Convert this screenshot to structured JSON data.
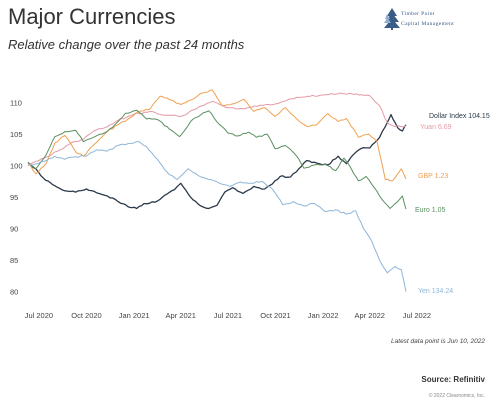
{
  "logo": {
    "line1": "Timber Point",
    "line2": "Capital Management",
    "colors": [
      "#3a5c86",
      "#5b87b5",
      "#8fb0d3"
    ]
  },
  "footer": {
    "note": "Latest data point is Jun 10, 2022",
    "source": "Source: Refinitiv",
    "copyright": "© 2022 Clearnomics, Inc."
  },
  "chart_data": {
    "type": "line",
    "title": "Major Currencies",
    "subtitle": "Relative change over the past 24 months",
    "xlabel": "",
    "ylabel": "",
    "x_ticks": [
      "Jul 2020",
      "Oct 2020",
      "Jan 2021",
      "Apr 2021",
      "Jul 2021",
      "Oct 2021",
      "Jan 2022",
      "Apr 2022",
      "Jul 2022"
    ],
    "x_range": [
      "2020-06-10",
      "2022-06-10"
    ],
    "y_ticks": [
      80,
      85,
      90,
      95,
      100,
      105,
      110
    ],
    "ylim": [
      79,
      112
    ],
    "grid": false,
    "legend": "end-of-line labels",
    "series": [
      {
        "name": "Dollar Index",
        "label": "Dollar Index 104.15",
        "color": "#2b3a4a",
        "points": [
          [
            "2020-06-10",
            100.5
          ],
          [
            "2020-06-25",
            99.5
          ],
          [
            "2020-07-10",
            98.0
          ],
          [
            "2020-08-01",
            96.8
          ],
          [
            "2020-08-20",
            96.0
          ],
          [
            "2020-09-10",
            95.8
          ],
          [
            "2020-10-01",
            96.3
          ],
          [
            "2020-10-20",
            95.7
          ],
          [
            "2020-11-10",
            95.2
          ],
          [
            "2020-12-01",
            94.3
          ],
          [
            "2020-12-20",
            93.5
          ],
          [
            "2021-01-06",
            93.2
          ],
          [
            "2021-01-20",
            94.0
          ],
          [
            "2021-02-10",
            94.2
          ],
          [
            "2021-03-01",
            95.3
          ],
          [
            "2021-03-20",
            96.2
          ],
          [
            "2021-04-01",
            97.2
          ],
          [
            "2021-04-20",
            95.0
          ],
          [
            "2021-05-10",
            93.6
          ],
          [
            "2021-05-25",
            93.2
          ],
          [
            "2021-06-10",
            93.7
          ],
          [
            "2021-06-25",
            95.8
          ],
          [
            "2021-07-10",
            96.5
          ],
          [
            "2021-07-30",
            95.6
          ],
          [
            "2021-08-20",
            96.7
          ],
          [
            "2021-09-10",
            96.3
          ],
          [
            "2021-09-25",
            97.1
          ],
          [
            "2021-10-10",
            98.3
          ],
          [
            "2021-10-30",
            98.2
          ],
          [
            "2021-11-15",
            99.5
          ],
          [
            "2021-11-30",
            100.8
          ],
          [
            "2021-12-20",
            100.4
          ],
          [
            "2022-01-10",
            100.1
          ],
          [
            "2022-01-30",
            101.5
          ],
          [
            "2022-02-15",
            100.3
          ],
          [
            "2022-03-01",
            101.8
          ],
          [
            "2022-03-15",
            102.7
          ],
          [
            "2022-04-01",
            102.8
          ],
          [
            "2022-04-20",
            104.5
          ],
          [
            "2022-05-01",
            106.2
          ],
          [
            "2022-05-12",
            108.1
          ],
          [
            "2022-05-25",
            106.0
          ],
          [
            "2022-06-03",
            105.5
          ],
          [
            "2022-06-10",
            106.5
          ]
        ]
      },
      {
        "name": "Yuan",
        "label": "Yuan 6.69",
        "color": "#e49aa6",
        "points": [
          [
            "2020-06-10",
            100.2
          ],
          [
            "2020-07-01",
            100.8
          ],
          [
            "2020-07-20",
            101.5
          ],
          [
            "2020-08-10",
            102.5
          ],
          [
            "2020-09-01",
            103.6
          ],
          [
            "2020-09-25",
            104.2
          ],
          [
            "2020-10-15",
            105.5
          ],
          [
            "2020-11-05",
            106.0
          ],
          [
            "2020-12-01",
            107.2
          ],
          [
            "2021-01-01",
            108.2
          ],
          [
            "2021-02-01",
            108.6
          ],
          [
            "2021-03-01",
            108.0
          ],
          [
            "2021-04-01",
            107.8
          ],
          [
            "2021-05-01",
            109.0
          ],
          [
            "2021-06-01",
            110.2
          ],
          [
            "2021-07-01",
            109.2
          ],
          [
            "2021-08-01",
            109.0
          ],
          [
            "2021-09-01",
            109.6
          ],
          [
            "2021-10-01",
            109.8
          ],
          [
            "2021-11-01",
            110.6
          ],
          [
            "2021-12-01",
            111.0
          ],
          [
            "2022-01-01",
            111.2
          ],
          [
            "2022-02-01",
            111.5
          ],
          [
            "2022-03-01",
            111.3
          ],
          [
            "2022-04-01",
            111.1
          ],
          [
            "2022-04-20",
            109.5
          ],
          [
            "2022-05-05",
            106.8
          ],
          [
            "2022-05-20",
            106.2
          ],
          [
            "2022-06-10",
            106.3
          ]
        ]
      },
      {
        "name": "GBP",
        "label": "GBP 1.23",
        "color": "#f0a050",
        "points": [
          [
            "2020-06-10",
            100.5
          ],
          [
            "2020-06-25",
            98.7
          ],
          [
            "2020-07-15",
            100.3
          ],
          [
            "2020-08-01",
            103.6
          ],
          [
            "2020-08-20",
            104.8
          ],
          [
            "2020-09-10",
            102.2
          ],
          [
            "2020-09-25",
            101.5
          ],
          [
            "2020-10-15",
            103.3
          ],
          [
            "2020-11-10",
            105.4
          ],
          [
            "2020-12-01",
            106.5
          ],
          [
            "2020-12-20",
            107.4
          ],
          [
            "2021-01-10",
            108.6
          ],
          [
            "2021-02-01",
            109.0
          ],
          [
            "2021-02-20",
            111.0
          ],
          [
            "2021-03-10",
            110.5
          ],
          [
            "2021-04-01",
            109.7
          ],
          [
            "2021-04-20",
            110.4
          ],
          [
            "2021-05-10",
            111.5
          ],
          [
            "2021-06-01",
            112.0
          ],
          [
            "2021-06-20",
            109.5
          ],
          [
            "2021-07-10",
            109.8
          ],
          [
            "2021-08-01",
            110.5
          ],
          [
            "2021-08-20",
            108.6
          ],
          [
            "2021-09-10",
            109.2
          ],
          [
            "2021-09-30",
            107.8
          ],
          [
            "2021-10-20",
            109.2
          ],
          [
            "2021-11-10",
            107.5
          ],
          [
            "2021-12-01",
            106.2
          ],
          [
            "2021-12-20",
            106.5
          ],
          [
            "2022-01-10",
            108.3
          ],
          [
            "2022-01-30",
            107.0
          ],
          [
            "2022-02-15",
            107.5
          ],
          [
            "2022-03-10",
            104.5
          ],
          [
            "2022-03-30",
            105.0
          ],
          [
            "2022-04-15",
            103.8
          ],
          [
            "2022-05-01",
            97.8
          ],
          [
            "2022-05-15",
            97.6
          ],
          [
            "2022-05-25",
            98.7
          ],
          [
            "2022-06-01",
            99.5
          ],
          [
            "2022-06-10",
            97.9
          ]
        ]
      },
      {
        "name": "Euro",
        "label": "Euro 1.05",
        "color": "#5a9060",
        "points": [
          [
            "2020-06-10",
            100.5
          ],
          [
            "2020-06-25",
            99.5
          ],
          [
            "2020-07-15",
            101.7
          ],
          [
            "2020-08-01",
            104.6
          ],
          [
            "2020-08-20",
            105.4
          ],
          [
            "2020-09-10",
            105.6
          ],
          [
            "2020-09-25",
            103.8
          ],
          [
            "2020-10-15",
            104.5
          ],
          [
            "2020-11-05",
            105.2
          ],
          [
            "2020-11-25",
            106.5
          ],
          [
            "2020-12-15",
            108.3
          ],
          [
            "2021-01-06",
            108.8
          ],
          [
            "2021-01-25",
            107.4
          ],
          [
            "2021-02-15",
            107.3
          ],
          [
            "2021-03-10",
            105.8
          ],
          [
            "2021-03-30",
            104.6
          ],
          [
            "2021-04-20",
            107.0
          ],
          [
            "2021-05-10",
            108.1
          ],
          [
            "2021-05-25",
            108.7
          ],
          [
            "2021-06-15",
            106.5
          ],
          [
            "2021-07-01",
            105.2
          ],
          [
            "2021-07-20",
            104.7
          ],
          [
            "2021-08-10",
            105.3
          ],
          [
            "2021-08-25",
            104.5
          ],
          [
            "2021-09-15",
            105.0
          ],
          [
            "2021-09-30",
            102.7
          ],
          [
            "2021-10-20",
            103.2
          ],
          [
            "2021-11-10",
            101.6
          ],
          [
            "2021-11-25",
            99.6
          ],
          [
            "2021-12-15",
            100.1
          ],
          [
            "2022-01-05",
            100.2
          ],
          [
            "2022-01-25",
            99.2
          ],
          [
            "2022-02-10",
            101.2
          ],
          [
            "2022-02-25",
            99.4
          ],
          [
            "2022-03-10",
            97.6
          ],
          [
            "2022-03-25",
            98.3
          ],
          [
            "2022-04-10",
            96.5
          ],
          [
            "2022-04-25",
            94.6
          ],
          [
            "2022-05-10",
            93.2
          ],
          [
            "2022-05-25",
            94.3
          ],
          [
            "2022-06-03",
            95.2
          ],
          [
            "2022-06-10",
            93.1
          ]
        ]
      },
      {
        "name": "Yen",
        "label": "Yen 134.24",
        "color": "#8fb6d8",
        "points": [
          [
            "2020-06-10",
            100.0
          ],
          [
            "2020-06-25",
            100.3
          ],
          [
            "2020-07-15",
            100.8
          ],
          [
            "2020-08-01",
            101.5
          ],
          [
            "2020-08-20",
            101.0
          ],
          [
            "2020-09-10",
            101.4
          ],
          [
            "2020-09-30",
            101.5
          ],
          [
            "2020-10-20",
            102.5
          ],
          [
            "2020-11-10",
            102.3
          ],
          [
            "2020-12-01",
            103.2
          ],
          [
            "2020-12-20",
            103.5
          ],
          [
            "2021-01-10",
            103.8
          ],
          [
            "2021-01-25",
            103.0
          ],
          [
            "2021-02-15",
            101.0
          ],
          [
            "2021-03-05",
            99.0
          ],
          [
            "2021-03-25",
            97.8
          ],
          [
            "2021-04-15",
            99.5
          ],
          [
            "2021-05-05",
            98.4
          ],
          [
            "2021-05-25",
            97.8
          ],
          [
            "2021-06-15",
            97.2
          ],
          [
            "2021-07-05",
            96.7
          ],
          [
            "2021-07-25",
            97.4
          ],
          [
            "2021-08-15",
            97.2
          ],
          [
            "2021-09-05",
            97.5
          ],
          [
            "2021-09-25",
            96.3
          ],
          [
            "2021-10-15",
            93.8
          ],
          [
            "2021-11-05",
            94.3
          ],
          [
            "2021-11-25",
            93.6
          ],
          [
            "2021-12-15",
            94.0
          ],
          [
            "2022-01-05",
            92.7
          ],
          [
            "2022-01-25",
            93.0
          ],
          [
            "2022-02-15",
            92.3
          ],
          [
            "2022-03-05",
            92.8
          ],
          [
            "2022-03-20",
            90.0
          ],
          [
            "2022-04-05",
            88.0
          ],
          [
            "2022-04-20",
            85.0
          ],
          [
            "2022-05-05",
            83.0
          ],
          [
            "2022-05-20",
            84.0
          ],
          [
            "2022-06-01",
            83.5
          ],
          [
            "2022-06-10",
            80.0
          ]
        ]
      }
    ]
  }
}
